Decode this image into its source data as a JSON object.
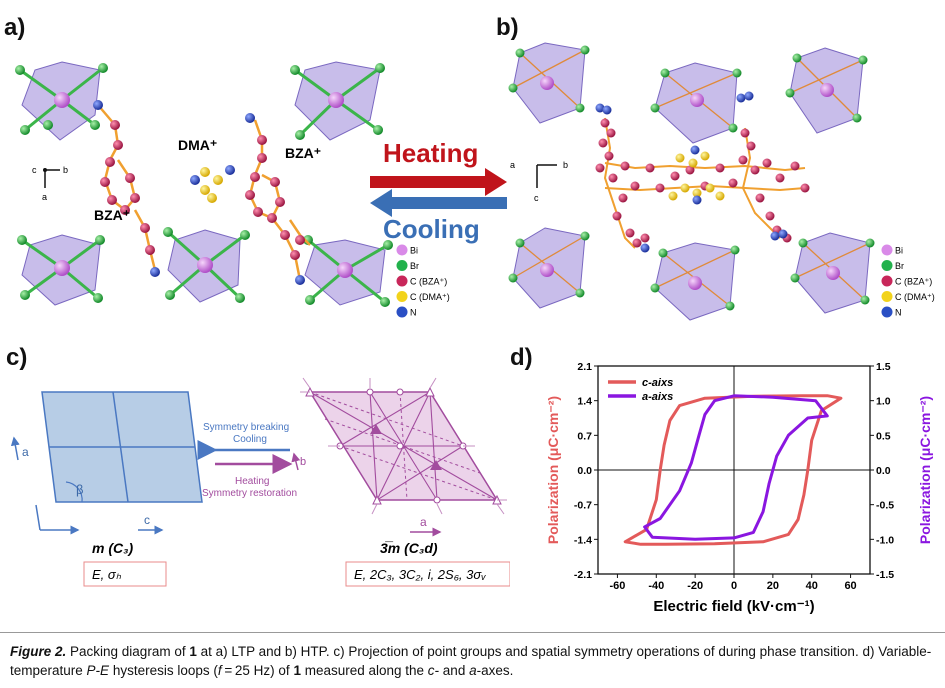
{
  "panels": {
    "a": {
      "label": "a)",
      "cation_dma": "DMA⁺",
      "cation_bza_1": "BZA⁺",
      "cation_bza_2": "BZA⁺",
      "axis_c": "c",
      "axis_b": "b",
      "axis_a": "a"
    },
    "arrows": {
      "heating": "Heating",
      "cooling": "Cooling",
      "heating_color": "#c0141b",
      "cooling_color": "#3a6fb5"
    },
    "b": {
      "label": "b)",
      "axis_a": "a",
      "axis_b": "b",
      "axis_c": "c"
    },
    "legend": [
      {
        "symbol": "Bi",
        "color": "#d98ae8"
      },
      {
        "symbol": "Br",
        "color": "#22b14c"
      },
      {
        "symbol": "C (BZA⁺)",
        "color": "#c8275a"
      },
      {
        "symbol": "C (DMA⁺)",
        "color": "#f2d31b"
      },
      {
        "symbol": "N",
        "color": "#2a4fc4"
      }
    ],
    "c": {
      "label": "c)",
      "left_axis_a": "a",
      "left_angle": "β",
      "left_axis_c": "c",
      "left_group": "m (C₃)",
      "left_ops": "E, σₕ",
      "break_text_1": "Symmetry breaking",
      "break_text_2": "Cooling",
      "restore_text_1": "Heating",
      "restore_text_2": "Symmetry restoration",
      "mid_axis_b": "b",
      "right_axis_a": "a",
      "right_group": "3̅m (C₃d)",
      "right_ops": "E, 2C₃, 3C₂, i, 2S₆, 3σᵥ",
      "blue": "#4a78c2",
      "purple": "#a24c9e"
    },
    "d": {
      "label": "d)"
    }
  },
  "chart_data": {
    "type": "line",
    "xlabel": "Electric field (kV·cm⁻¹)",
    "ylabel": "Polarization (μC·cm⁻²)",
    "y2label": "Polarization (μC·cm⁻²)",
    "xlim": [
      -70,
      70
    ],
    "ylim": [
      -2.1,
      2.1
    ],
    "y2lim": [
      -1.5,
      1.5
    ],
    "xticks": [
      "-60",
      "-40",
      "-20",
      "0",
      "20",
      "40",
      "60"
    ],
    "xtick_values": [
      -60,
      -40,
      -20,
      0,
      20,
      40,
      60
    ],
    "yticks": [
      "2.1",
      "1.4",
      "0.7",
      "0.0",
      "-0.7",
      "-1.4",
      "-2.1"
    ],
    "ytick_values": [
      2.1,
      1.4,
      0.7,
      0.0,
      -0.7,
      -1.4,
      -2.1
    ],
    "y2ticks": [
      "1.5",
      "1.0",
      "0.5",
      "0.0",
      "-0.5",
      "-1.0",
      "-1.5"
    ],
    "y2tick_values": [
      1.5,
      1.0,
      0.5,
      0.0,
      -0.5,
      -1.0,
      -1.5
    ],
    "ylabel_color": "#e35a5a",
    "y2label_color": "#8a16e0",
    "legend_position": "top-left",
    "series": [
      {
        "name": "c-aixs",
        "axis": "left",
        "color": "#e35a5a",
        "x": [
          55,
          48,
          35,
          10,
          -15,
          -28,
          -33,
          -36,
          -38,
          -40,
          -45,
          -56,
          -48,
          -35,
          -10,
          15,
          28,
          33,
          36,
          38,
          40,
          45,
          55
        ],
        "y": [
          1.45,
          1.5,
          1.5,
          1.49,
          1.45,
          1.3,
          1.0,
          0.5,
          0.0,
          -0.6,
          -1.2,
          -1.45,
          -1.5,
          -1.5,
          -1.49,
          -1.45,
          -1.3,
          -1.0,
          -0.5,
          0.0,
          0.6,
          1.2,
          1.45
        ]
      },
      {
        "name": "a-aixs",
        "axis": "right",
        "color": "#8a16e0",
        "x": [
          48,
          42,
          20,
          0,
          -10,
          -15,
          -18,
          -22,
          -28,
          -38,
          -46,
          -42,
          -20,
          0,
          10,
          15,
          18,
          22,
          28,
          38,
          48
        ],
        "y": [
          0.78,
          1.0,
          1.05,
          1.07,
          1.0,
          0.8,
          0.5,
          0.1,
          -0.3,
          -0.7,
          -0.82,
          -0.97,
          -1.0,
          -0.98,
          -0.9,
          -0.6,
          -0.2,
          0.2,
          0.5,
          0.75,
          0.78
        ]
      }
    ]
  },
  "caption": {
    "lead": "Figure 2.",
    "part1": " Packing diagram of ",
    "compound": "1",
    "part2": " at a) LTP and b) HTP. c) Projection of point groups and spatial symmetry operations of during phase transition. d) Variable-temperature ",
    "pe": "P-E",
    "part3": " hysteresis loops (",
    "freq": "f",
    "part4": " = 25 Hz) of ",
    "compound2": "1",
    "part5": " measured along the ",
    "ax1": "c-",
    "part6": " and ",
    "ax2": "a",
    "part7": "-axes."
  }
}
